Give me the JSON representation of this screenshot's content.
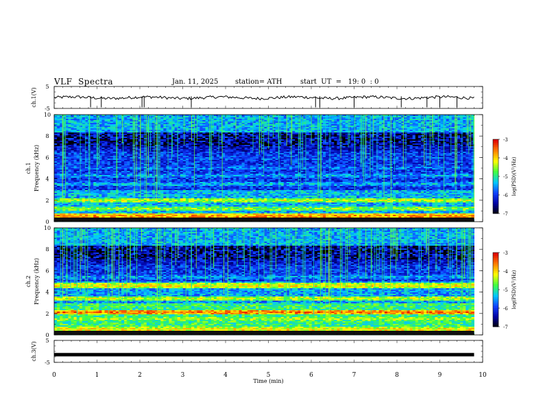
{
  "header": {
    "title": "VLF  Spectra",
    "date": "Jan. 11, 2025",
    "station": "station= ATH",
    "start": "start  UT  =   19: 0  : 0"
  },
  "chart_data": [
    {
      "type": "line",
      "panel": "ch1-waveform",
      "ylabel": "ch.1(V)",
      "ylim": [
        -5,
        5
      ],
      "yticks": [
        "5",
        "-5"
      ],
      "xlim": [
        0,
        10
      ],
      "note_level": -0.1,
      "series": [
        {
          "x": [
            0,
            9.8
          ],
          "y": [
            -0.1,
            -0.1
          ]
        }
      ],
      "spikes_min": [
        0.85,
        1.1,
        2.05,
        2.1,
        3.2,
        6.1,
        6.2,
        7.0,
        8.1,
        8.7,
        9.0,
        9.4
      ]
    },
    {
      "type": "heatmap",
      "panel": "ch1-spectrogram",
      "ylabel": "ch.1\nFrequency  (kHz)",
      "ylim": [
        0,
        10
      ],
      "yticks": [
        "0",
        "2",
        "4",
        "6",
        "8",
        "10"
      ],
      "xlim": [
        0,
        10
      ],
      "data_end_min": 9.8,
      "colorbar": {
        "label": "log(PSD)(V²/Hz)",
        "ticks": [
          "-3",
          "-4",
          "-5",
          "-6",
          "-7"
        ],
        "range": [
          -7,
          -3
        ]
      },
      "bands_khz": [
        {
          "f": 0.5,
          "level": -3.6
        },
        {
          "f": 1.2,
          "level": -4.5
        },
        {
          "f": 2.0,
          "level": -4.3
        },
        {
          "f": 3.5,
          "level": -5.3
        },
        {
          "f": 4.3,
          "level": -5.4
        },
        {
          "f": 5.0,
          "level": -5.6
        },
        {
          "f": 5.9,
          "level": -5.7
        }
      ]
    },
    {
      "type": "heatmap",
      "panel": "ch2-spectrogram",
      "ylabel": "ch.2\nFrequency  (kHz)",
      "ylim": [
        0,
        10
      ],
      "yticks": [
        "0",
        "2",
        "4",
        "6",
        "8",
        "10"
      ],
      "xlim": [
        0,
        10
      ],
      "data_end_min": 9.8,
      "colorbar": {
        "label": "log(PSD)(V²/Hz)",
        "ticks": [
          "-3",
          "-4",
          "-5",
          "-6",
          "-7"
        ],
        "range": [
          -7,
          -3
        ]
      },
      "bands_khz": [
        {
          "f": 0.5,
          "level": -4.0
        },
        {
          "f": 1.5,
          "level": -4.4
        },
        {
          "f": 2.1,
          "level": -3.5
        },
        {
          "f": 3.4,
          "level": -4.3
        },
        {
          "f": 4.6,
          "level": -4.0
        },
        {
          "f": 5.4,
          "level": -5.4
        }
      ]
    },
    {
      "type": "line",
      "panel": "ch3-waveform",
      "ylabel": "ch.3(V)",
      "ylim": [
        -5,
        5
      ],
      "yticks": [
        "5",
        "-5"
      ],
      "xlim": [
        0,
        10
      ],
      "series": [
        {
          "x": [
            0,
            9.8
          ],
          "y": [
            -1.5,
            -1.5
          ]
        }
      ]
    }
  ],
  "x_axis": {
    "label": "Time  (min)",
    "ticks": [
      "0",
      "1",
      "2",
      "3",
      "4",
      "5",
      "6",
      "7",
      "8",
      "9",
      "10"
    ]
  },
  "colors": {
    "colormap": [
      "#000000",
      "#0000a0",
      "#1040ff",
      "#00c8ff",
      "#40ff40",
      "#ffff00",
      "#ff8000",
      "#e00000",
      "#ffffff"
    ]
  }
}
